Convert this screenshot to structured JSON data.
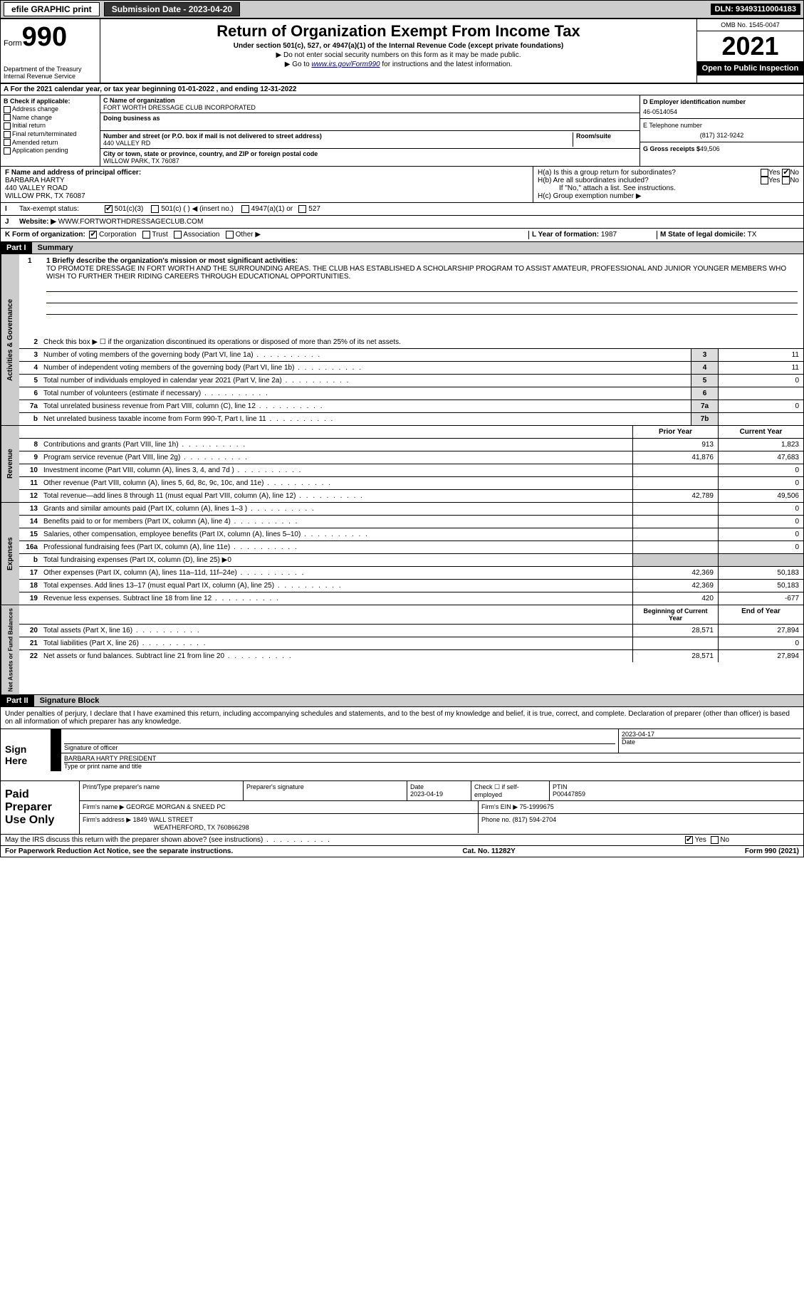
{
  "top": {
    "efile": "efile GRAPHIC print",
    "subdate_label": "Submission Date - 2023-04-20",
    "dln": "DLN: 93493110004183"
  },
  "header": {
    "form": "Form",
    "num": "990",
    "dept": "Department of the Treasury Internal Revenue Service",
    "title": "Return of Organization Exempt From Income Tax",
    "sub1": "Under section 501(c), 527, or 4947(a)(1) of the Internal Revenue Code (except private foundations)",
    "sub2": "▶ Do not enter social security numbers on this form as it may be made public.",
    "sub3_a": "▶ Go to ",
    "sub3_link": "www.irs.gov/Form990",
    "sub3_b": " for instructions and the latest information.",
    "omb": "OMB No. 1545-0047",
    "year": "2021",
    "open": "Open to Public Inspection"
  },
  "row_a": "A For the 2021 calendar year, or tax year beginning 01-01-2022    , and ending 12-31-2022",
  "box_b": {
    "hdr": "B Check if applicable:",
    "items": [
      "Address change",
      "Name change",
      "Initial return",
      "Final return/terminated",
      "Amended return",
      "Application pending"
    ]
  },
  "box_c": {
    "name_label": "C Name of organization",
    "name": "FORT WORTH DRESSAGE CLUB INCORPORATED",
    "dba_label": "Doing business as",
    "addr_label": "Number and street (or P.O. box if mail is not delivered to street address)",
    "room_label": "Room/suite",
    "addr": "440 VALLEY RD",
    "city_label": "City or town, state or province, country, and ZIP or foreign postal code",
    "city": "WILLOW PARK, TX  76087"
  },
  "box_d": {
    "label": "D Employer identification number",
    "ein": "46-0514054",
    "tel_label": "E Telephone number",
    "tel": "(817) 312-9242",
    "gross_label": "G Gross receipts $",
    "gross": "49,506"
  },
  "box_f": {
    "label": "F Name and address of principal officer:",
    "name": "BARBARA HARTY",
    "addr1": "440 VALLEY ROAD",
    "addr2": "WILLOW PRK, TX  76087"
  },
  "box_h": {
    "a": "H(a)  Is this a group return for subordinates?",
    "b": "H(b)  Are all subordinates included?",
    "note": "If \"No,\" attach a list. See instructions.",
    "c": "H(c)  Group exemption number ▶",
    "yes": "Yes",
    "no": "No"
  },
  "box_i": {
    "label": "Tax-exempt status:",
    "opts": [
      "501(c)(3)",
      "501(c) (   ) ◀ (insert no.)",
      "4947(a)(1) or",
      "527"
    ]
  },
  "box_j": {
    "label": "Website: ▶",
    "val": "WWW.FORTWORTHDRESSAGECLUB.COM"
  },
  "box_k": {
    "label": "K Form of organization:",
    "opts": [
      "Corporation",
      "Trust",
      "Association",
      "Other ▶"
    ]
  },
  "box_l": {
    "label": "L Year of formation:",
    "val": "1987"
  },
  "box_m": {
    "label": "M State of legal domicile:",
    "val": "TX"
  },
  "part1": {
    "hdr": "Part I",
    "title": "Summary"
  },
  "mission": {
    "label": "1  Briefly describe the organization's mission or most significant activities:",
    "text": "TO PROMOTE DRESSAGE IN FORT WORTH AND THE SURROUNDING AREAS. THE CLUB HAS ESTABLISHED A SCHOLARSHIP PROGRAM TO ASSIST AMATEUR, PROFESSIONAL AND JUNIOR YOUNGER MEMBERS WHO WISH TO FURTHER THEIR RIDING CAREERS THROUGH EDUCATIONAL OPPORTUNITIES."
  },
  "gov": {
    "q2": "Check this box ▶ ☐  if the organization discontinued its operations or disposed of more than 25% of its net assets.",
    "rows": [
      {
        "n": "3",
        "t": "Number of voting members of the governing body (Part VI, line 1a)",
        "box": "3",
        "v": "11"
      },
      {
        "n": "4",
        "t": "Number of independent voting members of the governing body (Part VI, line 1b)",
        "box": "4",
        "v": "11"
      },
      {
        "n": "5",
        "t": "Total number of individuals employed in calendar year 2021 (Part V, line 2a)",
        "box": "5",
        "v": "0"
      },
      {
        "n": "6",
        "t": "Total number of volunteers (estimate if necessary)",
        "box": "6",
        "v": ""
      },
      {
        "n": "7a",
        "t": "Total unrelated business revenue from Part VIII, column (C), line 12",
        "box": "7a",
        "v": "0"
      },
      {
        "n": "b",
        "t": "Net unrelated business taxable income from Form 990-T, Part I, line 11",
        "box": "7b",
        "v": ""
      }
    ]
  },
  "col_hdrs": {
    "prior": "Prior Year",
    "current": "Current Year"
  },
  "revenue": [
    {
      "n": "8",
      "t": "Contributions and grants (Part VIII, line 1h)",
      "p": "913",
      "c": "1,823"
    },
    {
      "n": "9",
      "t": "Program service revenue (Part VIII, line 2g)",
      "p": "41,876",
      "c": "47,683"
    },
    {
      "n": "10",
      "t": "Investment income (Part VIII, column (A), lines 3, 4, and 7d )",
      "p": "",
      "c": "0"
    },
    {
      "n": "11",
      "t": "Other revenue (Part VIII, column (A), lines 5, 6d, 8c, 9c, 10c, and 11e)",
      "p": "",
      "c": "0"
    },
    {
      "n": "12",
      "t": "Total revenue—add lines 8 through 11 (must equal Part VIII, column (A), line 12)",
      "p": "42,789",
      "c": "49,506"
    }
  ],
  "expenses": [
    {
      "n": "13",
      "t": "Grants and similar amounts paid (Part IX, column (A), lines 1–3 )",
      "p": "",
      "c": "0"
    },
    {
      "n": "14",
      "t": "Benefits paid to or for members (Part IX, column (A), line 4)",
      "p": "",
      "c": "0"
    },
    {
      "n": "15",
      "t": "Salaries, other compensation, employee benefits (Part IX, column (A), lines 5–10)",
      "p": "",
      "c": "0"
    },
    {
      "n": "16a",
      "t": "Professional fundraising fees (Part IX, column (A), line 11e)",
      "p": "",
      "c": "0"
    },
    {
      "n": "b",
      "t": "Total fundraising expenses (Part IX, column (D), line 25) ▶0",
      "p": null,
      "c": null
    },
    {
      "n": "17",
      "t": "Other expenses (Part IX, column (A), lines 11a–11d, 11f–24e)",
      "p": "42,369",
      "c": "50,183"
    },
    {
      "n": "18",
      "t": "Total expenses. Add lines 13–17 (must equal Part IX, column (A), line 25)",
      "p": "42,369",
      "c": "50,183"
    },
    {
      "n": "19",
      "t": "Revenue less expenses. Subtract line 18 from line 12",
      "p": "420",
      "c": "-677"
    }
  ],
  "net_hdrs": {
    "begin": "Beginning of Current Year",
    "end": "End of Year"
  },
  "net": [
    {
      "n": "20",
      "t": "Total assets (Part X, line 16)",
      "p": "28,571",
      "c": "27,894"
    },
    {
      "n": "21",
      "t": "Total liabilities (Part X, line 26)",
      "p": "",
      "c": "0"
    },
    {
      "n": "22",
      "t": "Net assets or fund balances. Subtract line 21 from line 20",
      "p": "28,571",
      "c": "27,894"
    }
  ],
  "part2": {
    "hdr": "Part II",
    "title": "Signature Block"
  },
  "sig_text": "Under penalties of perjury, I declare that I have examined this return, including accompanying schedules and statements, and to the best of my knowledge and belief, it is true, correct, and complete. Declaration of preparer (other than officer) is based on all information of which preparer has any knowledge.",
  "sign": {
    "here": "Sign Here",
    "sig_label": "Signature of officer",
    "date_label": "Date",
    "date": "2023-04-17",
    "name": "BARBARA HARTY PRESIDENT",
    "name_label": "Type or print name and title"
  },
  "paid": {
    "label": "Paid Preparer Use Only",
    "h1": "Print/Type preparer's name",
    "h2": "Preparer's signature",
    "h3": "Date",
    "date": "2023-04-19",
    "h4": "Check ☐ if self-employed",
    "h5": "PTIN",
    "ptin": "P00447859",
    "firm_label": "Firm's name    ▶",
    "firm": "GEORGE MORGAN & SNEED PC",
    "ein_label": "Firm's EIN ▶",
    "ein": "75-1999675",
    "addr_label": "Firm's address ▶",
    "addr1": "1849 WALL STREET",
    "addr2": "WEATHERFORD, TX  760866298",
    "phone_label": "Phone no.",
    "phone": "(817) 594-2704"
  },
  "discuss": "May the IRS discuss this return with the preparer shown above? (see instructions)",
  "footer": {
    "pra": "For Paperwork Reduction Act Notice, see the separate instructions.",
    "cat": "Cat. No. 11282Y",
    "form": "Form 990 (2021)"
  },
  "sidelabels": {
    "gov": "Activities & Governance",
    "rev": "Revenue",
    "exp": "Expenses",
    "net": "Net Assets or Fund Balances"
  }
}
